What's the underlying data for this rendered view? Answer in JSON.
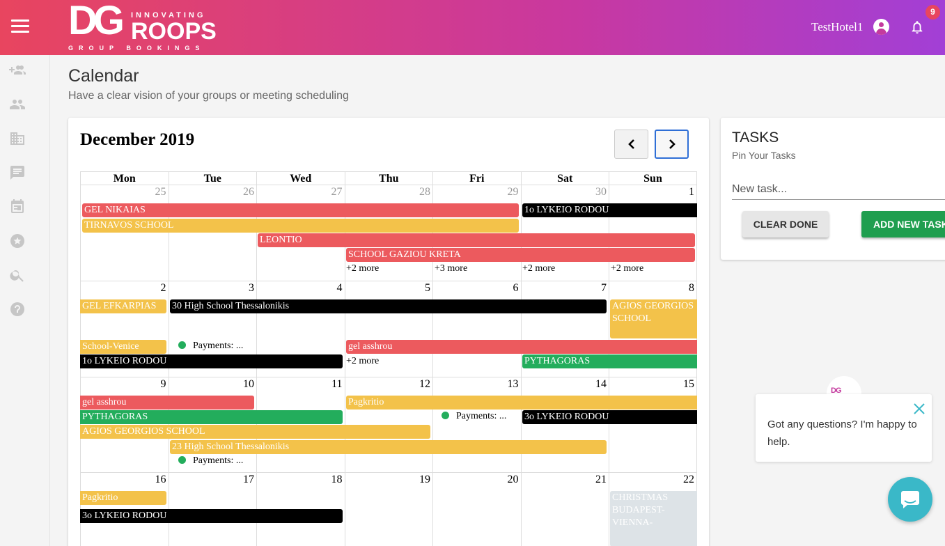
{
  "header": {
    "logo": {
      "dg": "DG",
      "innovating": "INNOVATING",
      "roops": "ROOPS",
      "group_bookings": "GROUP BOOKINGS"
    },
    "user_name": "TestHotel1",
    "notification_count": "9",
    "icons": [
      "menu-icon",
      "user-circle-icon",
      "bell-icon"
    ]
  },
  "sidebar": {
    "items": [
      {
        "icon": "add-group-icon"
      },
      {
        "icon": "people-icon"
      },
      {
        "icon": "building-icon"
      },
      {
        "icon": "message-icon"
      },
      {
        "icon": "calendar-icon"
      },
      {
        "icon": "star-icon"
      },
      {
        "icon": "search-icon"
      },
      {
        "icon": "help-icon"
      }
    ]
  },
  "page": {
    "title": "Calendar",
    "subtitle": "Have a clear vision of your groups or meeting scheduling"
  },
  "calendar": {
    "month_title": "December 2019",
    "weekdays": [
      "Mon",
      "Tue",
      "Wed",
      "Thu",
      "Fri",
      "Sat",
      "Sun"
    ],
    "weeks": [
      [
        "25",
        "26",
        "27",
        "28",
        "29",
        "30",
        "1"
      ],
      [
        "2",
        "3",
        "4",
        "5",
        "6",
        "7",
        "8"
      ],
      [
        "9",
        "10",
        "11",
        "12",
        "13",
        "14",
        "15"
      ],
      [
        "16",
        "17",
        "18",
        "19",
        "20",
        "21",
        "22"
      ]
    ],
    "events": {
      "w1": [
        "GEL NIKAIAS",
        "TIRNAVOS SCHOOL",
        "LEONTIO",
        "SCHOOL GAZIOU KRETA",
        "1o LYKEIO RODOU"
      ],
      "w1_more": [
        "+2 more",
        "+3 more",
        "+2 more",
        "+2 more"
      ],
      "w2": [
        "GEL EFKARPIAS",
        "30 High School Thessalonikis",
        "AGIOS GEORGIOS SCHOOL",
        "School-Venice",
        "gel asshrou",
        "1o LYKEIO RODOU",
        "PYTHAGORAS"
      ],
      "w2_more": "+2 more",
      "w2_payment": "Payments: ...",
      "w3": [
        "gel asshrou",
        "Pagkritio",
        "PYTHAGORAS",
        "3o LYKEIO RODOU",
        "AGIOS GEORGIOS SCHOOL",
        "23 High School Thessalonikis"
      ],
      "w3_payments": [
        "Payments: ...",
        "Payments: ..."
      ],
      "w4": [
        "Pagkritio",
        "3o LYKEIO RODOU",
        "CHRISTMAS BUDAPEST-VIENNA-"
      ]
    }
  },
  "tasks": {
    "title": "TASKS",
    "subtitle": "Pin Your Tasks",
    "input_placeholder": "New task...",
    "clear_label": "CLEAR DONE",
    "add_label": "ADD NEW TASK"
  },
  "chat": {
    "message": "Got any questions? I'm happy to help.",
    "icons": [
      "close-icon",
      "chat-icon"
    ]
  }
}
